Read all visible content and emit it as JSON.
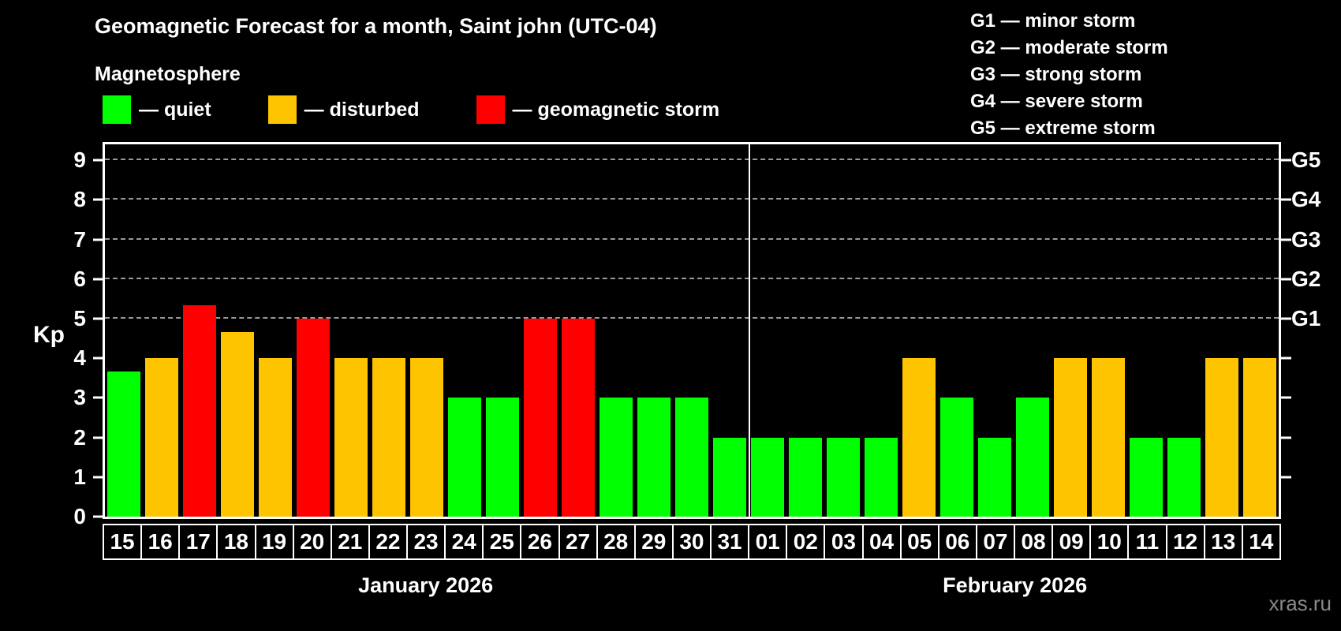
{
  "header": {
    "title": "Geomagnetic Forecast for a month, Saint john (UTC-04)",
    "subtitle": "Magnetosphere"
  },
  "legend": {
    "items": [
      {
        "label": "— quiet",
        "status": "quiet"
      },
      {
        "label": "— disturbed",
        "status": "disturbed"
      },
      {
        "label": "— geomagnetic storm",
        "status": "storm"
      }
    ]
  },
  "storm_scale_legend": [
    "G1 — minor storm",
    "G2 — moderate storm",
    "G3 — strong storm",
    "G4 — severe storm",
    "G5 — extreme storm"
  ],
  "watermark": "xras.ru",
  "colors": {
    "quiet": "#00ff00",
    "disturbed": "#ffc400",
    "storm": "#ff0000",
    "background": "#000000",
    "axis": "#ffffff",
    "grid": "#999999"
  },
  "chart_data": {
    "type": "bar",
    "ylabel": "Kp",
    "y_ticks": [
      0,
      1,
      2,
      3,
      4,
      5,
      6,
      7,
      8,
      9
    ],
    "y_axis_top": 9.4,
    "ylim": [
      0,
      9
    ],
    "grid": "dashed horizontal at Kp 5-9 only",
    "gridlines_at": [
      5,
      6,
      7,
      8,
      9
    ],
    "right_axis_labels": [
      {
        "label": "G1",
        "kp": 5
      },
      {
        "label": "G2",
        "kp": 6
      },
      {
        "label": "G3",
        "kp": 7
      },
      {
        "label": "G4",
        "kp": 8
      },
      {
        "label": "G5",
        "kp": 9
      }
    ],
    "right_axis_ticks": [
      1,
      2,
      3,
      4,
      5,
      6,
      7,
      8,
      9
    ],
    "months": [
      {
        "label": "January 2026",
        "days": 17
      },
      {
        "label": "February 2026",
        "days": 14
      }
    ],
    "days": [
      {
        "day": "15",
        "kp": 3.67,
        "status": "quiet"
      },
      {
        "day": "16",
        "kp": 4,
        "status": "disturbed"
      },
      {
        "day": "17",
        "kp": 5.33,
        "status": "storm"
      },
      {
        "day": "18",
        "kp": 4.67,
        "status": "disturbed"
      },
      {
        "day": "19",
        "kp": 4,
        "status": "disturbed"
      },
      {
        "day": "20",
        "kp": 5,
        "status": "storm"
      },
      {
        "day": "21",
        "kp": 4,
        "status": "disturbed"
      },
      {
        "day": "22",
        "kp": 4,
        "status": "disturbed"
      },
      {
        "day": "23",
        "kp": 4,
        "status": "disturbed"
      },
      {
        "day": "24",
        "kp": 3,
        "status": "quiet"
      },
      {
        "day": "25",
        "kp": 3,
        "status": "quiet"
      },
      {
        "day": "26",
        "kp": 5,
        "status": "storm"
      },
      {
        "day": "27",
        "kp": 5,
        "status": "storm"
      },
      {
        "day": "28",
        "kp": 3,
        "status": "quiet"
      },
      {
        "day": "29",
        "kp": 3,
        "status": "quiet"
      },
      {
        "day": "30",
        "kp": 3,
        "status": "quiet"
      },
      {
        "day": "31",
        "kp": 2,
        "status": "quiet"
      },
      {
        "day": "01",
        "kp": 2,
        "status": "quiet"
      },
      {
        "day": "02",
        "kp": 2,
        "status": "quiet"
      },
      {
        "day": "03",
        "kp": 2,
        "status": "quiet"
      },
      {
        "day": "04",
        "kp": 2,
        "status": "quiet"
      },
      {
        "day": "05",
        "kp": 4,
        "status": "disturbed"
      },
      {
        "day": "06",
        "kp": 3,
        "status": "quiet"
      },
      {
        "day": "07",
        "kp": 2,
        "status": "quiet"
      },
      {
        "day": "08",
        "kp": 3,
        "status": "quiet"
      },
      {
        "day": "09",
        "kp": 4,
        "status": "disturbed"
      },
      {
        "day": "10",
        "kp": 4,
        "status": "disturbed"
      },
      {
        "day": "11",
        "kp": 2,
        "status": "quiet"
      },
      {
        "day": "12",
        "kp": 2,
        "status": "quiet"
      },
      {
        "day": "13",
        "kp": 4,
        "status": "disturbed"
      },
      {
        "day": "14",
        "kp": 4,
        "status": "disturbed"
      }
    ]
  }
}
